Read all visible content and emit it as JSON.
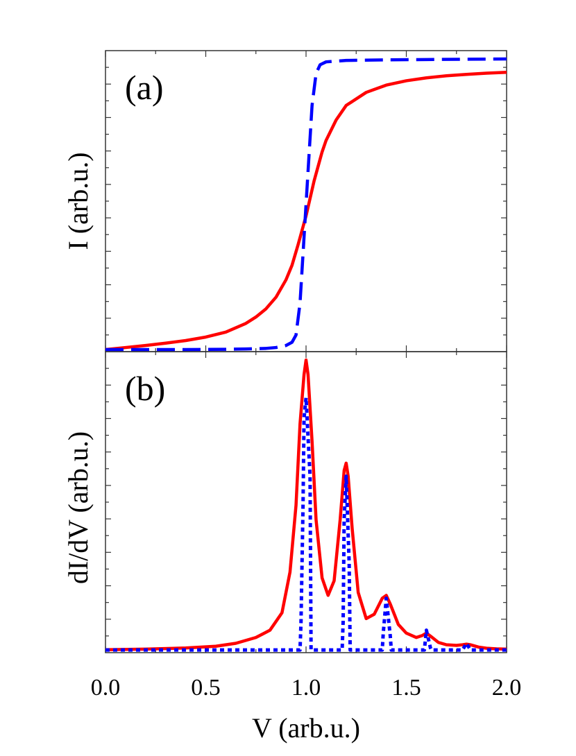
{
  "chart_data": [
    {
      "type": "line",
      "panel_label": "(a)",
      "xlabel": "",
      "ylabel": "I (arb.u.)",
      "xlim": [
        0.0,
        2.0
      ],
      "ylim": [
        0.0,
        1.0
      ],
      "x_ticks": [
        0.0,
        0.5,
        1.0,
        1.5,
        2.0
      ],
      "y_tick_labels": [],
      "grid": false,
      "series": [
        {
          "color": "#ff0000",
          "style": "solid",
          "x": [
            0.0,
            0.1,
            0.2,
            0.3,
            0.4,
            0.5,
            0.6,
            0.7,
            0.75,
            0.8,
            0.85,
            0.9,
            0.93,
            0.96,
            0.98,
            1.0,
            1.02,
            1.04,
            1.06,
            1.08,
            1.1,
            1.15,
            1.2,
            1.3,
            1.4,
            1.5,
            1.6,
            1.7,
            1.8,
            1.9,
            2.0
          ],
          "y": [
            0.0,
            0.007,
            0.014,
            0.022,
            0.031,
            0.043,
            0.06,
            0.09,
            0.112,
            0.14,
            0.18,
            0.24,
            0.29,
            0.36,
            0.41,
            0.46,
            0.52,
            0.58,
            0.63,
            0.68,
            0.72,
            0.79,
            0.84,
            0.885,
            0.91,
            0.925,
            0.935,
            0.942,
            0.947,
            0.951,
            0.954
          ]
        },
        {
          "color": "#0000ff",
          "style": "dashed",
          "x": [
            0.0,
            0.2,
            0.4,
            0.6,
            0.7,
            0.8,
            0.85,
            0.9,
            0.93,
            0.95,
            0.97,
            0.985,
            1.0,
            1.015,
            1.03,
            1.05,
            1.07,
            1.1,
            1.2,
            1.4,
            1.6,
            1.8,
            2.0
          ],
          "y": [
            0.0,
            0.0,
            0.0,
            0.001,
            0.002,
            0.004,
            0.007,
            0.014,
            0.025,
            0.05,
            0.16,
            0.33,
            0.5,
            0.67,
            0.84,
            0.95,
            0.98,
            0.99,
            0.995,
            0.997,
            0.998,
            0.999,
            1.0
          ]
        }
      ]
    },
    {
      "type": "line",
      "panel_label": "(b)",
      "xlabel": "V (arb.u.)",
      "ylabel": "dI/dV (arb.u.)",
      "xlim": [
        0.0,
        2.0
      ],
      "ylim": [
        0.0,
        1.0
      ],
      "x_ticks": [
        0.0,
        0.5,
        1.0,
        1.5,
        2.0
      ],
      "x_tick_labels": [
        "0.0",
        "0.5",
        "1.0",
        "1.5",
        "2.0"
      ],
      "y_tick_labels": [],
      "grid": false,
      "series": [
        {
          "color": "#ff0000",
          "style": "solid",
          "x": [
            0.0,
            0.2,
            0.4,
            0.55,
            0.65,
            0.75,
            0.82,
            0.88,
            0.92,
            0.95,
            0.97,
            0.99,
            1.0,
            1.01,
            1.03,
            1.05,
            1.08,
            1.11,
            1.14,
            1.17,
            1.19,
            1.2,
            1.21,
            1.23,
            1.26,
            1.3,
            1.34,
            1.38,
            1.4,
            1.42,
            1.46,
            1.5,
            1.55,
            1.58,
            1.6,
            1.62,
            1.66,
            1.7,
            1.75,
            1.78,
            1.8,
            1.82,
            1.86,
            1.9,
            1.95,
            2.0
          ],
          "y": [
            0.003,
            0.005,
            0.009,
            0.015,
            0.025,
            0.045,
            0.07,
            0.13,
            0.27,
            0.5,
            0.78,
            0.95,
            1.0,
            0.95,
            0.72,
            0.45,
            0.25,
            0.19,
            0.24,
            0.45,
            0.62,
            0.645,
            0.6,
            0.42,
            0.2,
            0.11,
            0.125,
            0.18,
            0.19,
            0.16,
            0.09,
            0.06,
            0.045,
            0.052,
            0.06,
            0.05,
            0.028,
            0.02,
            0.018,
            0.02,
            0.022,
            0.02,
            0.012,
            0.008,
            0.006,
            0.005
          ]
        },
        {
          "color": "#0000ff",
          "style": "dotted",
          "x": [
            0.0,
            0.6,
            0.97,
            0.975,
            0.985,
            0.99,
            1.0,
            1.02,
            1.025,
            1.18,
            1.185,
            1.19,
            1.2,
            1.215,
            1.22,
            1.38,
            1.385,
            1.4,
            1.42,
            1.425,
            1.59,
            1.6,
            1.62,
            1.625,
            1.78,
            1.8,
            1.82,
            2.0
          ],
          "y": [
            0.002,
            0.002,
            0.002,
            0.1,
            0.5,
            0.8,
            0.87,
            0.6,
            0.002,
            0.002,
            0.1,
            0.45,
            0.6,
            0.3,
            0.002,
            0.002,
            0.06,
            0.18,
            0.05,
            0.002,
            0.002,
            0.07,
            0.01,
            0.002,
            0.002,
            0.025,
            0.002,
            0.002
          ]
        }
      ]
    }
  ]
}
